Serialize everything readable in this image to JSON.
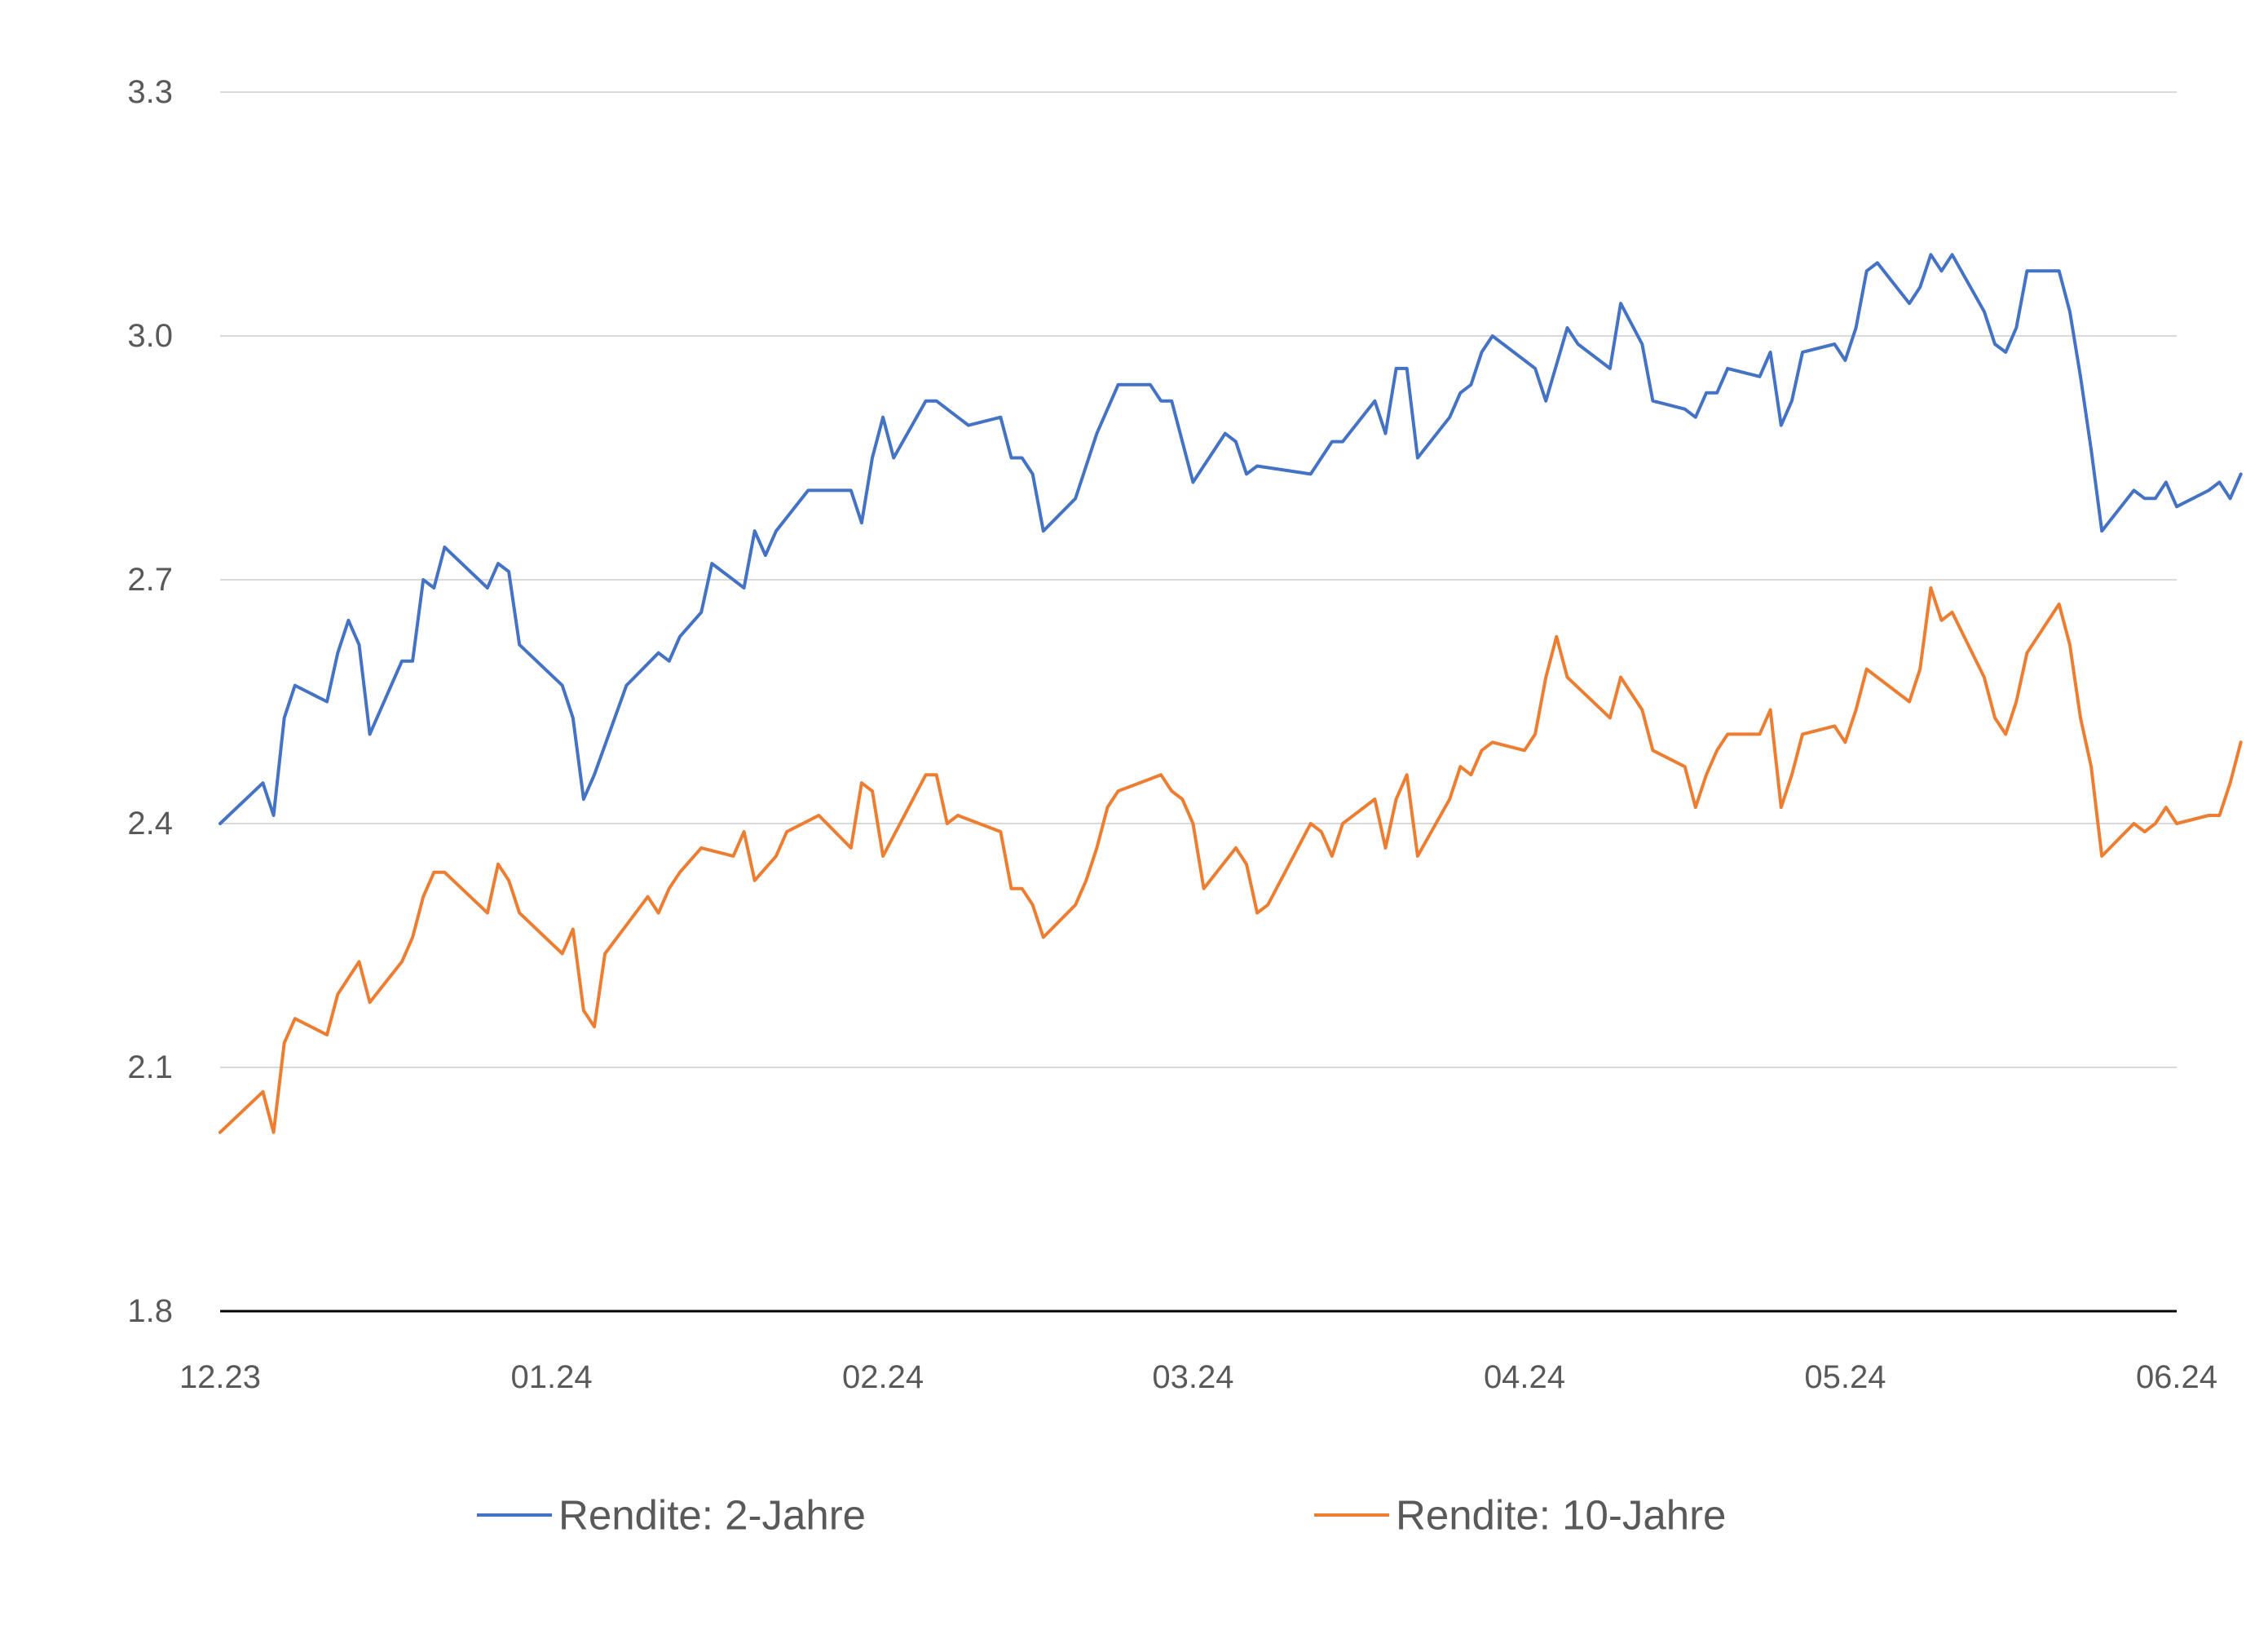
{
  "chart_data": {
    "type": "line",
    "title": "",
    "xlabel": "",
    "ylabel": "",
    "ylim": [
      1.8,
      3.3
    ],
    "yticks": [
      "1.8",
      "2.1",
      "2.4",
      "2.7",
      "3.0",
      "3.3"
    ],
    "xlim": [
      "2023-12-01",
      "2024-06-01"
    ],
    "xticks": [
      {
        "date": "2023-12-01",
        "label": "12.23"
      },
      {
        "date": "2024-01-01",
        "label": "01.24"
      },
      {
        "date": "2024-02-01",
        "label": "02.24"
      },
      {
        "date": "2024-03-01",
        "label": "03.24"
      },
      {
        "date": "2024-04-01",
        "label": "04.24"
      },
      {
        "date": "2024-05-01",
        "label": "05.24"
      },
      {
        "date": "2024-06-01",
        "label": "06.24"
      }
    ],
    "grid": true,
    "legend": "bottom",
    "colors": {
      "two_year": "#4472C4",
      "ten_year": "#ED7D31",
      "grid": "#D9D9D9",
      "axis": "#000000",
      "text": "#595959"
    },
    "series": [
      {
        "name": "Rendite: 2-Jahre",
        "color": "#4472C4",
        "points": [
          [
            "2023-12-01",
            2.4
          ],
          [
            "2023-12-05",
            2.45
          ],
          [
            "2023-12-06",
            2.41
          ],
          [
            "2023-12-07",
            2.53
          ],
          [
            "2023-12-08",
            2.57
          ],
          [
            "2023-12-11",
            2.55
          ],
          [
            "2023-12-12",
            2.61
          ],
          [
            "2023-12-13",
            2.65
          ],
          [
            "2023-12-14",
            2.62
          ],
          [
            "2023-12-15",
            2.51
          ],
          [
            "2023-12-18",
            2.6
          ],
          [
            "2023-12-19",
            2.6
          ],
          [
            "2023-12-20",
            2.7
          ],
          [
            "2023-12-21",
            2.69
          ],
          [
            "2023-12-22",
            2.74
          ],
          [
            "2023-12-26",
            2.69
          ],
          [
            "2023-12-27",
            2.72
          ],
          [
            "2023-12-28",
            2.71
          ],
          [
            "2023-12-29",
            2.62
          ],
          [
            "2024-01-02",
            2.57
          ],
          [
            "2024-01-03",
            2.53
          ],
          [
            "2024-01-04",
            2.43
          ],
          [
            "2024-01-05",
            2.46
          ],
          [
            "2024-01-08",
            2.57
          ],
          [
            "2024-01-11",
            2.61
          ],
          [
            "2024-01-12",
            2.6
          ],
          [
            "2024-01-13",
            2.63
          ],
          [
            "2024-01-15",
            2.66
          ],
          [
            "2024-01-16",
            2.72
          ],
          [
            "2024-01-19",
            2.69
          ],
          [
            "2024-01-20",
            2.76
          ],
          [
            "2024-01-21",
            2.73
          ],
          [
            "2024-01-22",
            2.76
          ],
          [
            "2024-01-25",
            2.81
          ],
          [
            "2024-01-29",
            2.81
          ],
          [
            "2024-01-30",
            2.77
          ],
          [
            "2024-01-31",
            2.85
          ],
          [
            "2024-02-01",
            2.9
          ],
          [
            "2024-02-02",
            2.85
          ],
          [
            "2024-02-05",
            2.92
          ],
          [
            "2024-02-06",
            2.92
          ],
          [
            "2024-02-08",
            2.9
          ],
          [
            "2024-02-09",
            2.89
          ],
          [
            "2024-02-12",
            2.9
          ],
          [
            "2024-02-13",
            2.85
          ],
          [
            "2024-02-14",
            2.85
          ],
          [
            "2024-02-15",
            2.83
          ],
          [
            "2024-02-16",
            2.76
          ],
          [
            "2024-02-19",
            2.8
          ],
          [
            "2024-02-21",
            2.88
          ],
          [
            "2024-02-23",
            2.94
          ],
          [
            "2024-02-26",
            2.94
          ],
          [
            "2024-02-27",
            2.92
          ],
          [
            "2024-02-28",
            2.92
          ],
          [
            "2024-03-01",
            2.82
          ],
          [
            "2024-03-04",
            2.88
          ],
          [
            "2024-03-05",
            2.87
          ],
          [
            "2024-03-06",
            2.83
          ],
          [
            "2024-03-07",
            2.84
          ],
          [
            "2024-03-12",
            2.83
          ],
          [
            "2024-03-13",
            2.85
          ],
          [
            "2024-03-14",
            2.87
          ],
          [
            "2024-03-15",
            2.87
          ],
          [
            "2024-03-18",
            2.92
          ],
          [
            "2024-03-19",
            2.88
          ],
          [
            "2024-03-20",
            2.96
          ],
          [
            "2024-03-21",
            2.96
          ],
          [
            "2024-03-22",
            2.85
          ],
          [
            "2024-03-25",
            2.9
          ],
          [
            "2024-03-26",
            2.93
          ],
          [
            "2024-03-27",
            2.94
          ],
          [
            "2024-03-28",
            2.98
          ],
          [
            "2024-03-29",
            3.0
          ],
          [
            "2024-04-01",
            2.97
          ],
          [
            "2024-04-02",
            2.96
          ],
          [
            "2024-04-03",
            2.92
          ],
          [
            "2024-04-05",
            3.01
          ],
          [
            "2024-04-06",
            2.99
          ],
          [
            "2024-04-09",
            2.96
          ],
          [
            "2024-04-10",
            3.04
          ],
          [
            "2024-04-12",
            2.99
          ],
          [
            "2024-04-13",
            2.92
          ],
          [
            "2024-04-16",
            2.91
          ],
          [
            "2024-04-17",
            2.9
          ],
          [
            "2024-04-18",
            2.93
          ],
          [
            "2024-04-19",
            2.93
          ],
          [
            "2024-04-20",
            2.96
          ],
          [
            "2024-04-23",
            2.95
          ],
          [
            "2024-04-24",
            2.98
          ],
          [
            "2024-04-25",
            2.89
          ],
          [
            "2024-04-26",
            2.92
          ],
          [
            "2024-04-27",
            2.98
          ],
          [
            "2024-04-30",
            2.99
          ],
          [
            "2024-05-01",
            2.97
          ],
          [
            "2024-05-02",
            3.01
          ],
          [
            "2024-05-03",
            3.08
          ],
          [
            "2024-05-04",
            3.09
          ],
          [
            "2024-05-07",
            3.04
          ],
          [
            "2024-05-08",
            3.06
          ],
          [
            "2024-05-09",
            3.1
          ],
          [
            "2024-05-10",
            3.08
          ],
          [
            "2024-05-11",
            3.1
          ],
          [
            "2024-05-14",
            3.03
          ],
          [
            "2024-05-15",
            2.99
          ],
          [
            "2024-05-16",
            2.98
          ],
          [
            "2024-05-17",
            3.01
          ],
          [
            "2024-05-18",
            3.08
          ],
          [
            "2024-05-21",
            3.08
          ],
          [
            "2024-05-22",
            3.03
          ],
          [
            "2024-05-23",
            2.95
          ],
          [
            "2024-05-24",
            2.86
          ],
          [
            "2024-05-25",
            2.76
          ],
          [
            "2024-05-28",
            2.81
          ],
          [
            "2024-05-29",
            2.8
          ],
          [
            "2024-05-30",
            2.8
          ],
          [
            "2024-05-31",
            2.82
          ],
          [
            "2024-06-01",
            2.79
          ],
          [
            "2024-06-04",
            2.81
          ],
          [
            "2024-06-05",
            2.82
          ],
          [
            "2024-06-06",
            2.8
          ],
          [
            "2024-06-07",
            2.83
          ]
        ]
      },
      {
        "name": "Rendite: 10-Jahre",
        "color": "#ED7D31",
        "points": [
          [
            "2023-12-01",
            2.02
          ],
          [
            "2023-12-05",
            2.07
          ],
          [
            "2023-12-06",
            2.02
          ],
          [
            "2023-12-07",
            2.13
          ],
          [
            "2023-12-08",
            2.16
          ],
          [
            "2023-12-11",
            2.14
          ],
          [
            "2023-12-12",
            2.19
          ],
          [
            "2023-12-14",
            2.23
          ],
          [
            "2023-12-15",
            2.18
          ],
          [
            "2023-12-18",
            2.23
          ],
          [
            "2023-12-19",
            2.26
          ],
          [
            "2023-12-20",
            2.31
          ],
          [
            "2023-12-21",
            2.34
          ],
          [
            "2023-12-22",
            2.34
          ],
          [
            "2023-12-26",
            2.29
          ],
          [
            "2023-12-27",
            2.35
          ],
          [
            "2023-12-28",
            2.33
          ],
          [
            "2023-12-29",
            2.29
          ],
          [
            "2024-01-02",
            2.24
          ],
          [
            "2024-01-03",
            2.27
          ],
          [
            "2024-01-04",
            2.17
          ],
          [
            "2024-01-05",
            2.15
          ],
          [
            "2024-01-06",
            2.24
          ],
          [
            "2024-01-10",
            2.31
          ],
          [
            "2024-01-11",
            2.29
          ],
          [
            "2024-01-12",
            2.32
          ],
          [
            "2024-01-13",
            2.34
          ],
          [
            "2024-01-15",
            2.37
          ],
          [
            "2024-01-18",
            2.36
          ],
          [
            "2024-01-19",
            2.39
          ],
          [
            "2024-01-20",
            2.33
          ],
          [
            "2024-01-22",
            2.36
          ],
          [
            "2024-01-23",
            2.39
          ],
          [
            "2024-01-26",
            2.41
          ],
          [
            "2024-01-29",
            2.37
          ],
          [
            "2024-01-30",
            2.45
          ],
          [
            "2024-01-31",
            2.44
          ],
          [
            "2024-02-01",
            2.36
          ],
          [
            "2024-02-05",
            2.46
          ],
          [
            "2024-02-06",
            2.46
          ],
          [
            "2024-02-07",
            2.4
          ],
          [
            "2024-02-08",
            2.41
          ],
          [
            "2024-02-12",
            2.39
          ],
          [
            "2024-02-13",
            2.32
          ],
          [
            "2024-02-14",
            2.32
          ],
          [
            "2024-02-15",
            2.3
          ],
          [
            "2024-02-16",
            2.26
          ],
          [
            "2024-02-19",
            2.3
          ],
          [
            "2024-02-20",
            2.33
          ],
          [
            "2024-02-21",
            2.37
          ],
          [
            "2024-02-22",
            2.42
          ],
          [
            "2024-02-23",
            2.44
          ],
          [
            "2024-02-27",
            2.46
          ],
          [
            "2024-02-28",
            2.44
          ],
          [
            "2024-02-29",
            2.43
          ],
          [
            "2024-03-01",
            2.4
          ],
          [
            "2024-03-02",
            2.32
          ],
          [
            "2024-03-05",
            2.37
          ],
          [
            "2024-03-06",
            2.35
          ],
          [
            "2024-03-07",
            2.29
          ],
          [
            "2024-03-08",
            2.3
          ],
          [
            "2024-03-12",
            2.4
          ],
          [
            "2024-03-13",
            2.39
          ],
          [
            "2024-03-14",
            2.36
          ],
          [
            "2024-03-15",
            2.4
          ],
          [
            "2024-03-18",
            2.43
          ],
          [
            "2024-03-19",
            2.37
          ],
          [
            "2024-03-20",
            2.43
          ],
          [
            "2024-03-21",
            2.46
          ],
          [
            "2024-03-22",
            2.36
          ],
          [
            "2024-03-25",
            2.43
          ],
          [
            "2024-03-26",
            2.47
          ],
          [
            "2024-03-27",
            2.46
          ],
          [
            "2024-03-28",
            2.49
          ],
          [
            "2024-03-29",
            2.5
          ],
          [
            "2024-04-01",
            2.49
          ],
          [
            "2024-04-02",
            2.51
          ],
          [
            "2024-04-03",
            2.58
          ],
          [
            "2024-04-04",
            2.63
          ],
          [
            "2024-04-05",
            2.58
          ],
          [
            "2024-04-09",
            2.53
          ],
          [
            "2024-04-10",
            2.58
          ],
          [
            "2024-04-12",
            2.54
          ],
          [
            "2024-04-13",
            2.49
          ],
          [
            "2024-04-16",
            2.47
          ],
          [
            "2024-04-17",
            2.42
          ],
          [
            "2024-04-18",
            2.46
          ],
          [
            "2024-04-19",
            2.49
          ],
          [
            "2024-04-20",
            2.51
          ],
          [
            "2024-04-23",
            2.51
          ],
          [
            "2024-04-24",
            2.54
          ],
          [
            "2024-04-25",
            2.42
          ],
          [
            "2024-04-26",
            2.46
          ],
          [
            "2024-04-27",
            2.51
          ],
          [
            "2024-04-30",
            2.52
          ],
          [
            "2024-05-01",
            2.5
          ],
          [
            "2024-05-02",
            2.54
          ],
          [
            "2024-05-03",
            2.59
          ],
          [
            "2024-05-07",
            2.55
          ],
          [
            "2024-05-08",
            2.59
          ],
          [
            "2024-05-09",
            2.69
          ],
          [
            "2024-05-10",
            2.65
          ],
          [
            "2024-05-11",
            2.66
          ],
          [
            "2024-05-14",
            2.58
          ],
          [
            "2024-05-15",
            2.53
          ],
          [
            "2024-05-16",
            2.51
          ],
          [
            "2024-05-17",
            2.55
          ],
          [
            "2024-05-18",
            2.61
          ],
          [
            "2024-05-21",
            2.67
          ],
          [
            "2024-05-22",
            2.62
          ],
          [
            "2024-05-23",
            2.53
          ],
          [
            "2024-05-24",
            2.47
          ],
          [
            "2024-05-25",
            2.36
          ],
          [
            "2024-05-28",
            2.4
          ],
          [
            "2024-05-29",
            2.39
          ],
          [
            "2024-05-30",
            2.4
          ],
          [
            "2024-05-31",
            2.42
          ],
          [
            "2024-06-01",
            2.4
          ],
          [
            "2024-06-04",
            2.41
          ],
          [
            "2024-06-05",
            2.41
          ],
          [
            "2024-06-06",
            2.45
          ],
          [
            "2024-06-07",
            2.5
          ]
        ]
      }
    ]
  }
}
